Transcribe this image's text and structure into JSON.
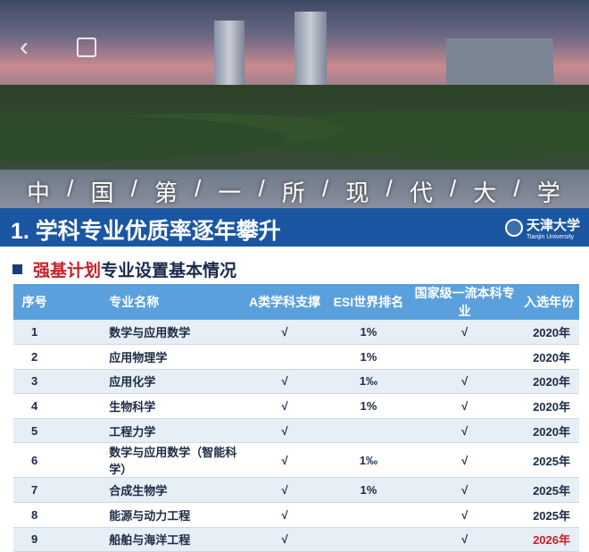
{
  "header": {
    "motto": [
      "中",
      "/",
      "国",
      "/",
      "第",
      "/",
      "一",
      "/",
      "所",
      "/",
      "现",
      "/",
      "代",
      "/",
      "大",
      "/",
      "学"
    ],
    "back_icon": "chevron-left-icon",
    "copy_icon": "copy-icon"
  },
  "banner": {
    "title": "1. 学科专业优质率逐年攀升",
    "logo_cn": "天津大学",
    "logo_en": "Tianjin University"
  },
  "subtitle": {
    "highlight": "强基计划",
    "rest": "专业设置基本情况"
  },
  "table": {
    "headers": [
      "序号",
      "专业名称",
      "A类学科支撑",
      "ESI世界排名",
      "国家级一流本科专业",
      "入选年份"
    ],
    "rows": [
      [
        "1",
        "数学与应用数学",
        "√",
        "1%",
        "√",
        "2020年"
      ],
      [
        "2",
        "应用物理学",
        "",
        "1%",
        "",
        "2020年"
      ],
      [
        "3",
        "应用化学",
        "√",
        "1‰",
        "√",
        "2020年"
      ],
      [
        "4",
        "生物科学",
        "√",
        "1%",
        "√",
        "2020年"
      ],
      [
        "5",
        "工程力学",
        "√",
        "",
        "√",
        "2020年"
      ],
      [
        "6",
        "数学与应用数学（智能科学）",
        "√",
        "1‰",
        "√",
        "2025年"
      ],
      [
        "7",
        "合成生物学",
        "√",
        "1%",
        "√",
        "2025年"
      ],
      [
        "8",
        "能源与动力工程",
        "√",
        "",
        "√",
        "2025年"
      ],
      [
        "9",
        "船舶与海洋工程",
        "√",
        "",
        "√",
        "2026年"
      ]
    ],
    "highlight_year_color": "#c8202a"
  },
  "colors": {
    "banner": "#1a56a2",
    "header": "#5aa0dc",
    "accent_red": "#c8202a"
  }
}
